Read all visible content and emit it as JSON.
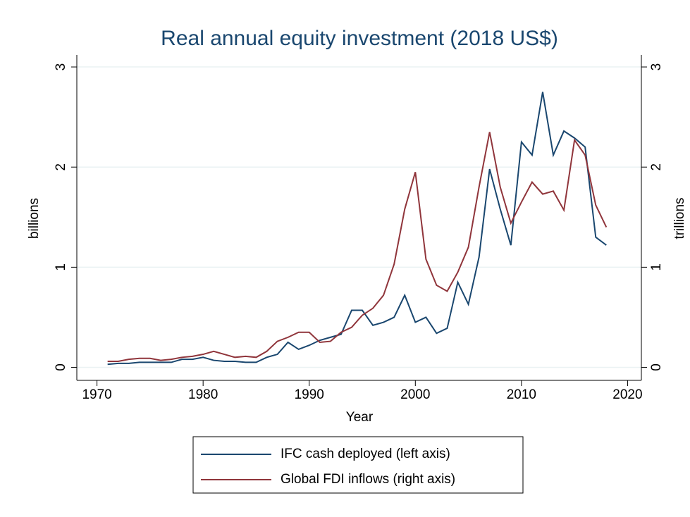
{
  "chart_data": {
    "type": "line",
    "title": "Real annual equity investment (2018 US$)",
    "x_label": "Year",
    "y_label": "billions",
    "y2_label": "trillions",
    "x": [
      1971,
      1972,
      1973,
      1974,
      1975,
      1976,
      1977,
      1978,
      1979,
      1980,
      1981,
      1982,
      1983,
      1984,
      1985,
      1986,
      1987,
      1988,
      1989,
      1990,
      1991,
      1992,
      1993,
      1994,
      1995,
      1996,
      1997,
      1998,
      1999,
      2000,
      2001,
      2002,
      2003,
      2004,
      2005,
      2006,
      2007,
      2008,
      2009,
      2010,
      2011,
      2012,
      2013,
      2014,
      2015,
      2016,
      2017,
      2018
    ],
    "series": [
      {
        "name": "IFC cash deployed (left axis)",
        "color": "#1a476f",
        "axis": "y",
        "values": [
          0.03,
          0.04,
          0.04,
          0.05,
          0.05,
          0.05,
          0.05,
          0.08,
          0.08,
          0.1,
          0.07,
          0.06,
          0.06,
          0.05,
          0.05,
          0.1,
          0.13,
          0.25,
          0.18,
          0.22,
          0.27,
          0.3,
          0.33,
          0.57,
          0.57,
          0.42,
          0.45,
          0.5,
          0.72,
          0.45,
          0.5,
          0.34,
          0.39,
          0.85,
          0.63,
          1.1,
          1.98,
          1.58,
          1.22,
          2.25,
          2.12,
          2.75,
          2.12,
          2.36,
          2.29,
          2.2,
          1.3,
          1.22
        ]
      },
      {
        "name": "Global FDI inflows (right axis)",
        "color": "#90353b",
        "axis": "y2",
        "values": [
          0.06,
          0.06,
          0.08,
          0.09,
          0.09,
          0.07,
          0.08,
          0.1,
          0.11,
          0.13,
          0.16,
          0.13,
          0.1,
          0.11,
          0.1,
          0.16,
          0.26,
          0.3,
          0.35,
          0.35,
          0.25,
          0.26,
          0.35,
          0.4,
          0.52,
          0.59,
          0.72,
          1.03,
          1.58,
          1.95,
          1.08,
          0.82,
          0.76,
          0.95,
          1.2,
          1.8,
          2.35,
          1.8,
          1.44,
          1.65,
          1.85,
          1.73,
          1.76,
          1.57,
          2.27,
          2.12,
          1.62,
          1.4
        ]
      }
    ],
    "xlim": [
      1968.1,
      2021.3
    ],
    "xticks": [
      1970,
      1980,
      1990,
      2000,
      2010,
      2020
    ],
    "ylim": [
      -0.13,
      3.12
    ],
    "yticks": [
      0,
      1,
      2,
      3
    ],
    "y2lim": [
      -0.13,
      3.12
    ],
    "y2ticks": [
      0,
      1,
      2,
      3
    ],
    "grid": true,
    "legend": "bottom"
  }
}
